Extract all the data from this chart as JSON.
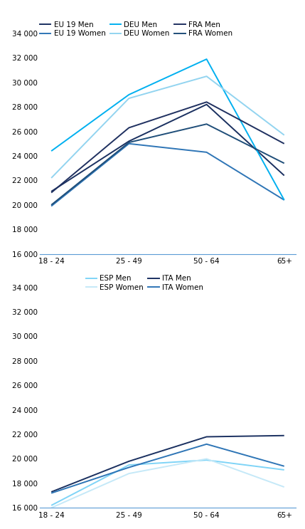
{
  "x_labels": [
    "18 - 24",
    "25 - 49",
    "50 - 64",
    "65+"
  ],
  "chart1": {
    "series": [
      {
        "label": "EU 19 Men",
        "color": "#1a3060",
        "linewidth": 1.4,
        "values": [
          21100,
          25200,
          28200,
          22400
        ]
      },
      {
        "label": "EU 19 Women",
        "color": "#2e75b6",
        "linewidth": 1.4,
        "values": [
          19900,
          25000,
          24300,
          20400
        ]
      },
      {
        "label": "DEU Men",
        "color": "#00b0f0",
        "linewidth": 1.4,
        "values": [
          24400,
          29000,
          31900,
          20400
        ]
      },
      {
        "label": "DEU Women",
        "color": "#92d4f0",
        "linewidth": 1.4,
        "values": [
          22200,
          28700,
          30500,
          25700
        ]
      },
      {
        "label": "FRA Men",
        "color": "#1f3060",
        "linewidth": 1.4,
        "values": [
          21000,
          26300,
          28400,
          25000
        ]
      },
      {
        "label": "FRA Women",
        "color": "#1f4e79",
        "linewidth": 1.4,
        "values": [
          20000,
          25100,
          26600,
          23400
        ]
      }
    ],
    "ylim": [
      16000,
      35000
    ],
    "yticks": [
      16000,
      18000,
      20000,
      22000,
      24000,
      26000,
      28000,
      30000,
      32000,
      34000
    ]
  },
  "chart2": {
    "series": [
      {
        "label": "ESP Men",
        "color": "#7fd4f7",
        "linewidth": 1.4,
        "values": [
          16200,
          19500,
          19900,
          19100
        ]
      },
      {
        "label": "ESP Women",
        "color": "#c5e9f8",
        "linewidth": 1.4,
        "values": [
          16000,
          18800,
          20000,
          17700
        ]
      },
      {
        "label": "ITA Men",
        "color": "#1a3060",
        "linewidth": 1.4,
        "values": [
          17300,
          19800,
          21800,
          21900
        ]
      },
      {
        "label": "ITA Women",
        "color": "#2e75b6",
        "linewidth": 1.4,
        "values": [
          17200,
          19300,
          21200,
          19400
        ]
      }
    ],
    "ylim": [
      16000,
      35000
    ],
    "yticks": [
      16000,
      18000,
      20000,
      22000,
      24000,
      26000,
      28000,
      30000,
      32000,
      34000
    ]
  },
  "tick_fontsize": 7.5,
  "legend_fontsize": 7.5,
  "bg_color": "#ffffff"
}
